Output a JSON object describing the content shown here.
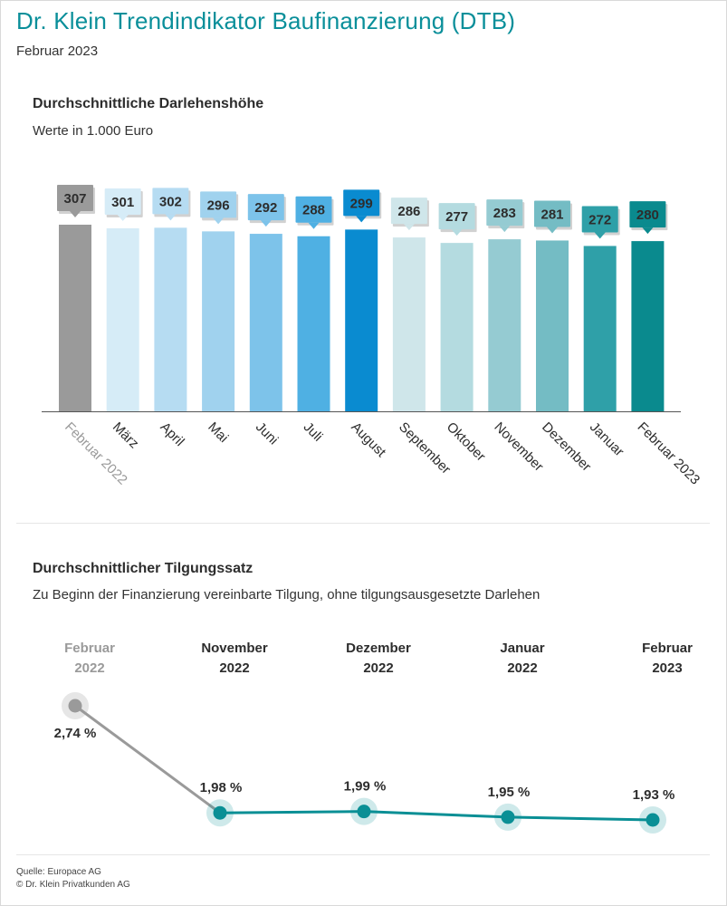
{
  "header": {
    "title": "Dr. Klein Trendindikator Baufinanzierung (DTB)",
    "subtitle": "Februar 2023"
  },
  "chart_data": [
    {
      "type": "bar",
      "title": "Durchschnittliche Darlehenshöhe",
      "subtitle": "Werte in 1.000 Euro",
      "categories": [
        "Februar 2022",
        "März",
        "April",
        "Mai",
        "Juni",
        "Juli",
        "August",
        "September",
        "Oktober",
        "November",
        "Dezember",
        "Januar",
        "Februar 2023"
      ],
      "values": [
        307,
        301,
        302,
        296,
        292,
        288,
        299,
        286,
        277,
        283,
        281,
        272,
        280
      ],
      "colors": [
        "#9a9a9a",
        "#d6ecf7",
        "#b6dcf2",
        "#a0d2ee",
        "#7dc3ea",
        "#4fb0e3",
        "#0a8bd0",
        "#cfe6ea",
        "#b4dbe0",
        "#95cbd2",
        "#74bcc4",
        "#2fa0a8",
        "#0a8a8e"
      ],
      "ylim": [
        0,
        307
      ]
    },
    {
      "type": "line",
      "title": "Durchschnittlicher Tilgungssatz",
      "subtitle": "Zu Beginn der Finanzierung vereinbarte Tilgung, ohne tilgungsausgesetzte Darlehen",
      "categories": [
        [
          "Februar",
          "2022"
        ],
        [
          "November",
          "2022"
        ],
        [
          "Dezember",
          "2022"
        ],
        [
          "Januar",
          "2022"
        ],
        [
          "Februar",
          "2023"
        ]
      ],
      "values": [
        2.74,
        1.98,
        1.99,
        1.95,
        1.93
      ],
      "value_labels": [
        "2,74 %",
        "1,98 %",
        "1,99 %",
        "1,95 %",
        "1,93 %"
      ],
      "colors": {
        "past": "#9a9a9a",
        "current": "#0a8f95"
      }
    }
  ],
  "footer": {
    "source": "Quelle: Europace AG",
    "copyright": "© Dr. Klein Privatkunden AG"
  }
}
